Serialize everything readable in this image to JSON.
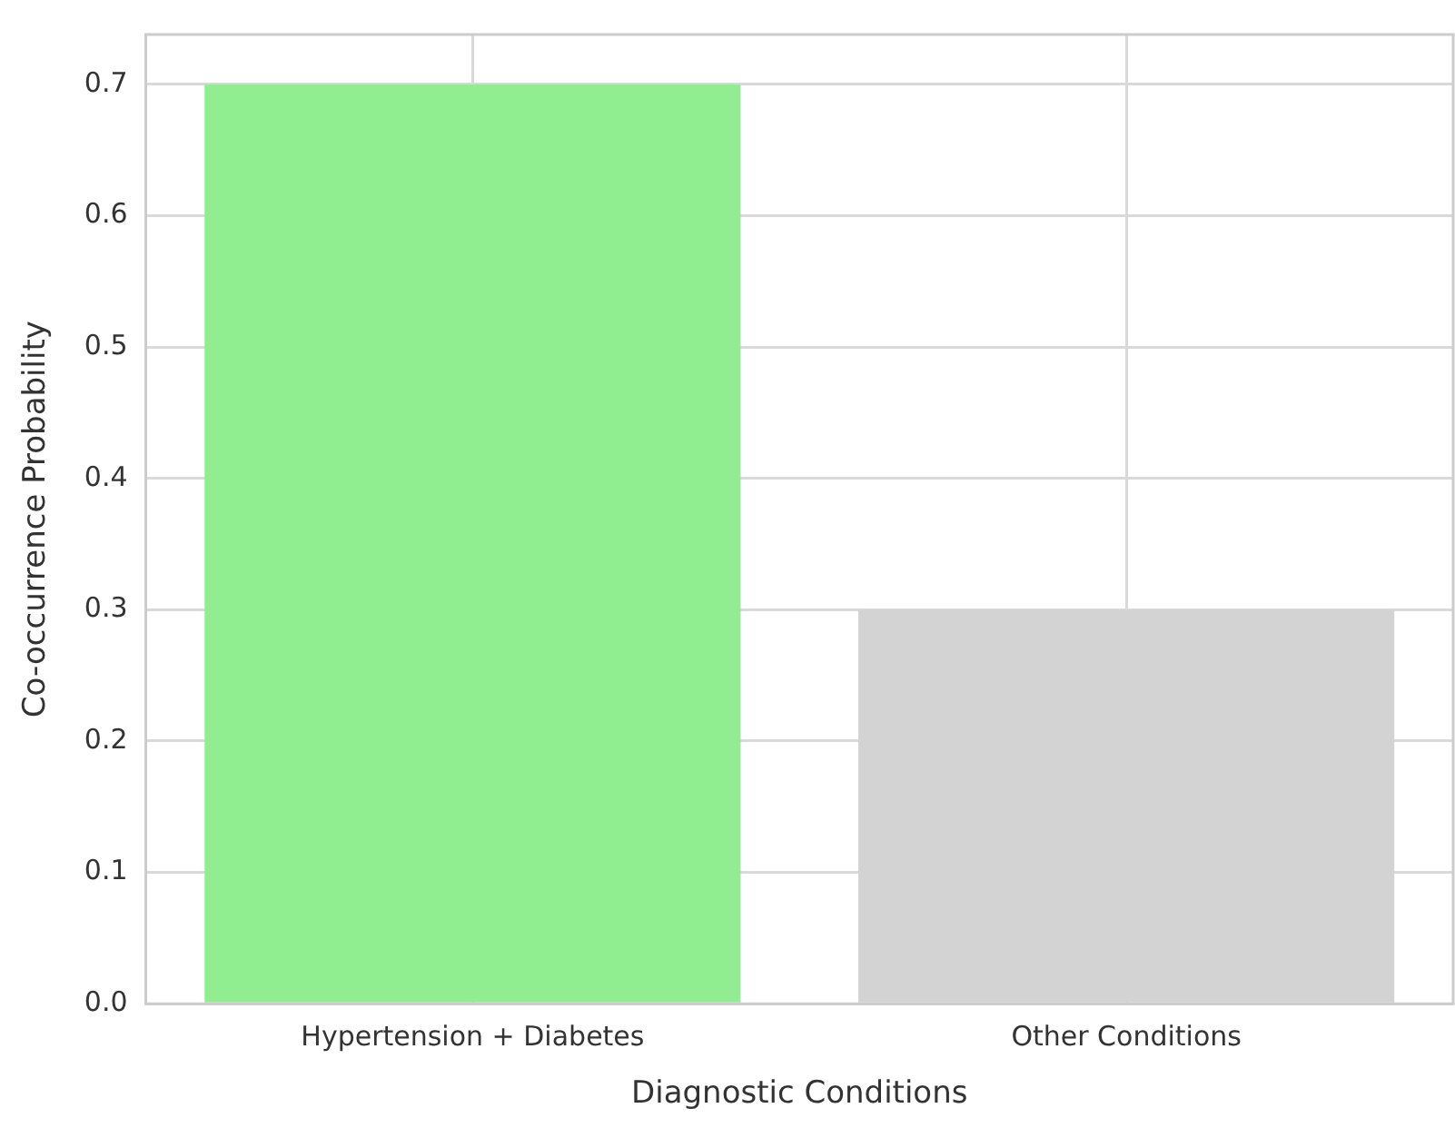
{
  "chart_data": {
    "type": "bar",
    "xlabel": "Diagnostic Conditions",
    "ylabel": "Co-occurrence Probability",
    "categories": [
      "Hypertension + Diabetes",
      "Other Conditions"
    ],
    "values": [
      0.7,
      0.3
    ],
    "colors": [
      "#90ee90",
      "#d3d3d3"
    ],
    "ylim": [
      0,
      0.738
    ],
    "yticks": [
      {
        "value": 0,
        "label": "0.0"
      },
      0.1,
      0.2,
      0.3,
      0.4,
      0.5,
      0.6,
      0.7
    ],
    "grid": true
  }
}
